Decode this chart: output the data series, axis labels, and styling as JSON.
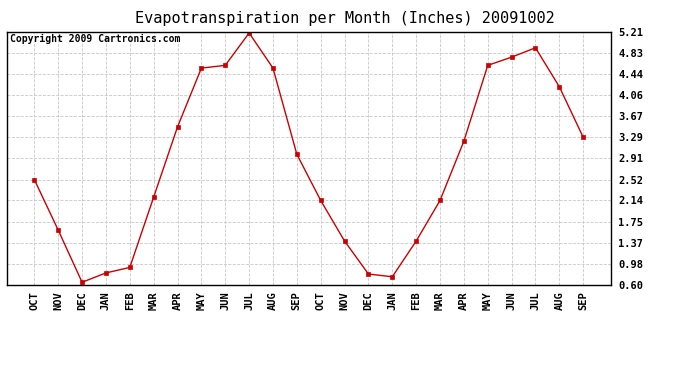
{
  "title": "Evapotranspiration per Month (Inches) 20091002",
  "copyright_text": "Copyright 2009 Cartronics.com",
  "x_labels": [
    "OCT",
    "NOV",
    "DEC",
    "JAN",
    "FEB",
    "MAR",
    "APR",
    "MAY",
    "JUN",
    "JUL",
    "AUG",
    "SEP",
    "OCT",
    "NOV",
    "DEC",
    "JAN",
    "FEB",
    "MAR",
    "APR",
    "MAY",
    "JUN",
    "JUL",
    "AUG",
    "SEP"
  ],
  "y_values": [
    2.52,
    1.6,
    0.65,
    0.82,
    0.92,
    2.2,
    3.48,
    4.55,
    4.6,
    5.19,
    4.55,
    2.98,
    2.14,
    1.4,
    0.8,
    0.75,
    1.4,
    2.14,
    3.22,
    4.6,
    4.75,
    4.92,
    4.21,
    3.29
  ],
  "y_ticks": [
    0.6,
    0.98,
    1.37,
    1.75,
    2.14,
    2.52,
    2.91,
    3.29,
    3.67,
    4.06,
    4.44,
    4.83,
    5.21
  ],
  "line_color": "#cc0000",
  "marker_color": "#cc0000",
  "background_color": "#ffffff",
  "grid_color": "#c8c8c8",
  "title_fontsize": 11,
  "copyright_fontsize": 7,
  "tick_fontsize": 7.5,
  "y_min": 0.6,
  "y_max": 5.21
}
